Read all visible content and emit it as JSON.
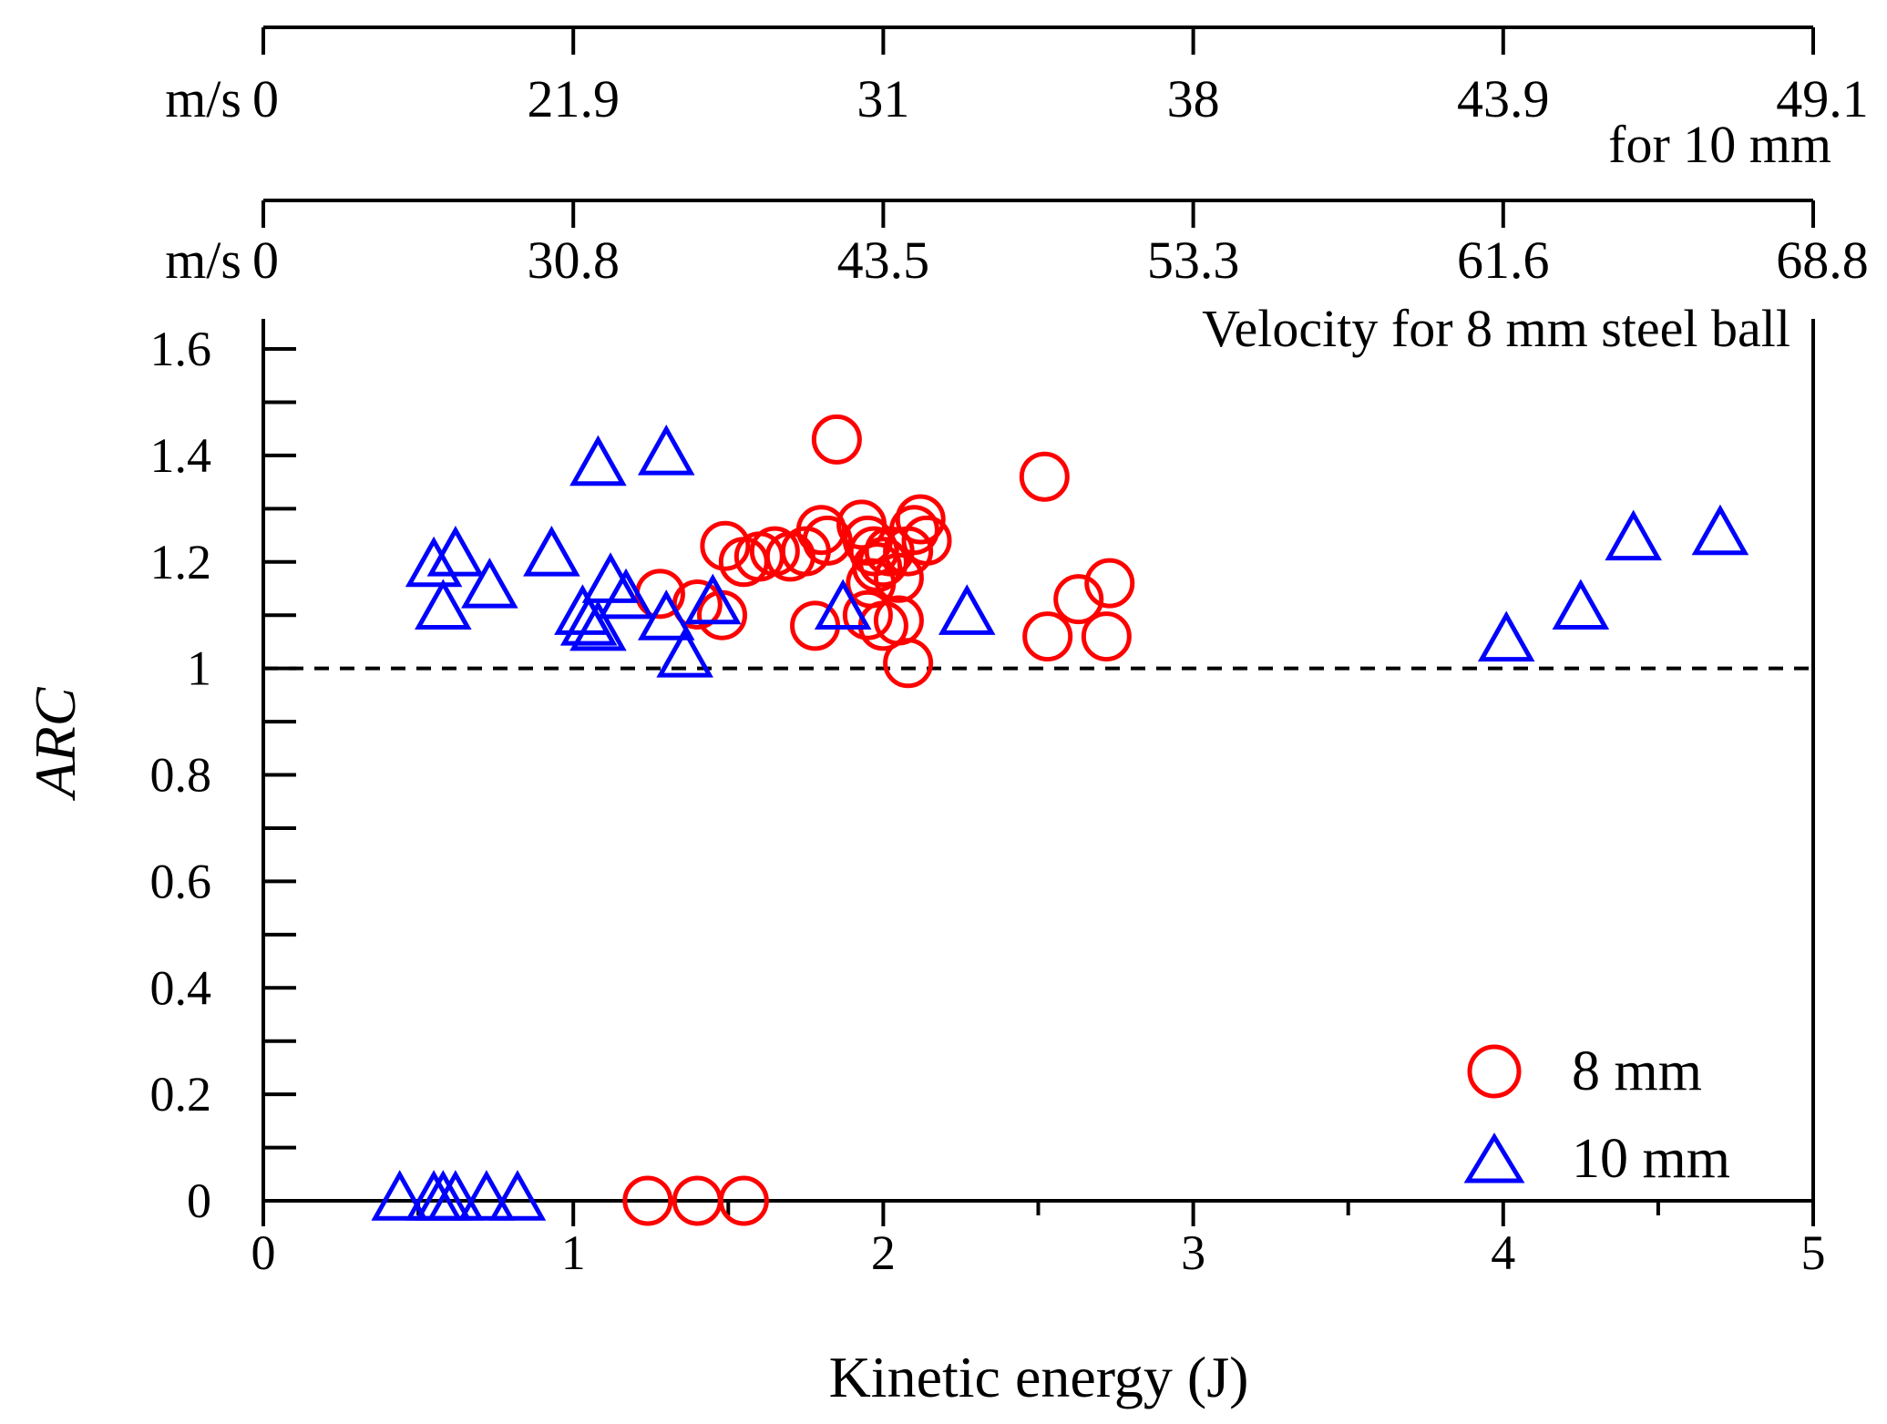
{
  "chart_data": {
    "type": "scatter",
    "xlabel": "Kinetic energy (J)",
    "ylabel": "ARC",
    "xlim": [
      0,
      5
    ],
    "ylim": [
      0,
      1.6
    ],
    "x_ticks": [
      0,
      1,
      2,
      3,
      4,
      5
    ],
    "x_tick_labels": [
      "0",
      "1",
      "2",
      "3",
      "4",
      "5"
    ],
    "y_ticks": [
      0,
      0.2,
      0.4,
      0.6,
      0.8,
      1,
      1.2,
      1.4,
      1.6
    ],
    "y_tick_labels": [
      "0",
      "0.2",
      "0.4",
      "0.6",
      "0.8",
      "1",
      "1.2",
      "1.4",
      "1.6"
    ],
    "reference_line": {
      "y": 1,
      "style": "dashed"
    },
    "top_axes": [
      {
        "unit": "m/s",
        "description": "Velocity for 8 mm steel ball",
        "tick_energies": [
          0,
          1,
          2,
          3,
          4,
          5
        ],
        "tick_labels": [
          "0",
          "30.8",
          "43.5",
          "53.3",
          "61.6",
          "68.8"
        ]
      },
      {
        "unit": "m/s",
        "description": "for 10 mm",
        "tick_energies": [
          0,
          1,
          2,
          3,
          4,
          5
        ],
        "tick_labels": [
          "0",
          "21.9",
          "31",
          "38",
          "43.9",
          "49.1"
        ]
      }
    ],
    "series": [
      {
        "name": "8 mm",
        "marker": "circle",
        "color": "#ff0000",
        "points": [
          [
            1.85,
            1.43
          ],
          [
            2.52,
            1.36
          ],
          [
            1.49,
            1.23
          ],
          [
            1.55,
            1.2
          ],
          [
            1.6,
            1.21
          ],
          [
            1.65,
            1.22
          ],
          [
            1.7,
            1.21
          ],
          [
            1.75,
            1.22
          ],
          [
            1.8,
            1.26
          ],
          [
            1.82,
            1.24
          ],
          [
            1.93,
            1.27
          ],
          [
            1.95,
            1.24
          ],
          [
            1.97,
            1.22
          ],
          [
            1.98,
            1.19
          ],
          [
            1.96,
            1.16
          ],
          [
            2.0,
            1.2
          ],
          [
            2.02,
            1.22
          ],
          [
            2.05,
            1.17
          ],
          [
            2.08,
            1.22
          ],
          [
            2.1,
            1.26
          ],
          [
            2.12,
            1.28
          ],
          [
            2.14,
            1.24
          ],
          [
            1.95,
            1.1
          ],
          [
            2.0,
            1.08
          ],
          [
            2.05,
            1.09
          ],
          [
            1.78,
            1.08
          ],
          [
            2.08,
            1.01
          ],
          [
            1.28,
            1.14
          ],
          [
            1.4,
            1.12
          ],
          [
            1.48,
            1.1
          ],
          [
            2.53,
            1.06
          ],
          [
            2.63,
            1.13
          ],
          [
            2.73,
            1.16
          ],
          [
            2.72,
            1.06
          ],
          [
            1.24,
            0
          ],
          [
            1.4,
            0
          ],
          [
            1.55,
            0
          ]
        ]
      },
      {
        "name": "10 mm",
        "marker": "triangle",
        "color": "#0000ff",
        "points": [
          [
            1.08,
            1.38
          ],
          [
            1.3,
            1.4
          ],
          [
            0.62,
            1.21
          ],
          [
            0.93,
            1.21
          ],
          [
            0.55,
            1.19
          ],
          [
            0.73,
            1.15
          ],
          [
            0.58,
            1.11
          ],
          [
            1.12,
            1.16
          ],
          [
            1.17,
            1.13
          ],
          [
            1.03,
            1.1
          ],
          [
            1.05,
            1.08
          ],
          [
            1.08,
            1.07
          ],
          [
            1.3,
            1.09
          ],
          [
            1.45,
            1.12
          ],
          [
            1.36,
            1.02
          ],
          [
            1.87,
            1.11
          ],
          [
            2.27,
            1.1
          ],
          [
            4.01,
            1.05
          ],
          [
            4.25,
            1.11
          ],
          [
            4.42,
            1.24
          ],
          [
            4.7,
            1.25
          ],
          [
            0.44,
            0
          ],
          [
            0.55,
            0
          ],
          [
            0.58,
            0
          ],
          [
            0.62,
            0
          ],
          [
            0.72,
            0
          ],
          [
            0.82,
            0
          ]
        ]
      }
    ]
  }
}
